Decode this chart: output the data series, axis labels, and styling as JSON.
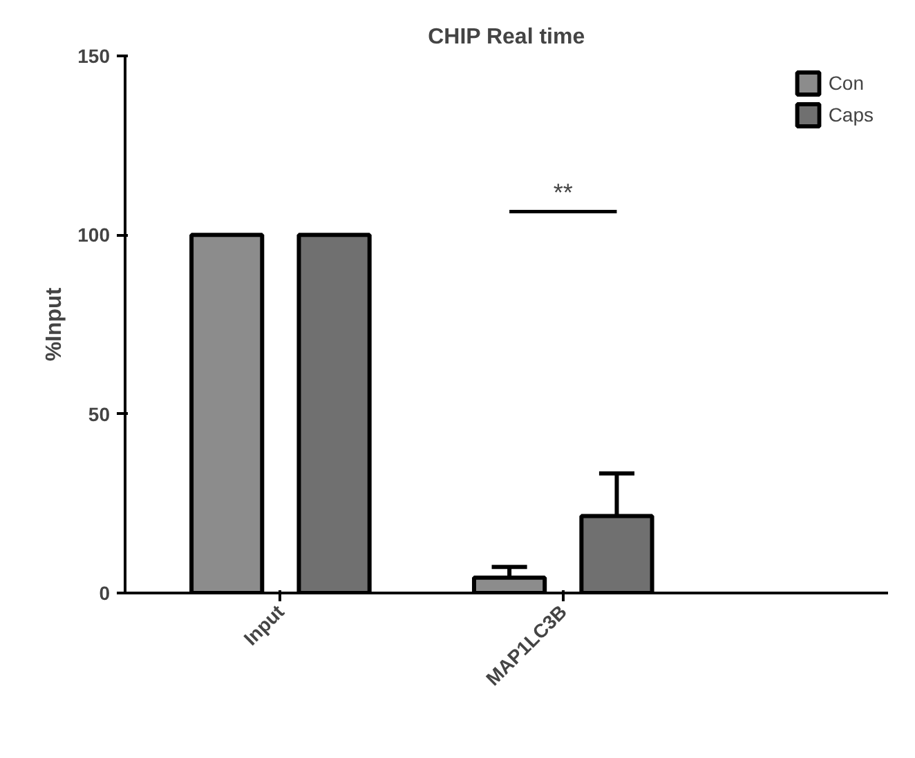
{
  "chart_data": {
    "type": "bar",
    "title": "CHIP Real time",
    "ylabel": "%Input",
    "categories": [
      "Input",
      "MAP1LC3B"
    ],
    "series": [
      {
        "name": "Con",
        "color": "#8c8c8c",
        "values": [
          100,
          4.3
        ],
        "errors": [
          null,
          [
            4.3,
            7.3
          ]
        ]
      },
      {
        "name": "Caps",
        "color": "#707070",
        "values": [
          100,
          21.5
        ],
        "errors": [
          null,
          [
            21.5,
            33.4
          ]
        ]
      }
    ],
    "ylim": [
      0,
      150
    ],
    "yticks": [
      0,
      50,
      100,
      150
    ],
    "grid": false,
    "legend": "top right",
    "annotations": [
      "**"
    ]
  }
}
